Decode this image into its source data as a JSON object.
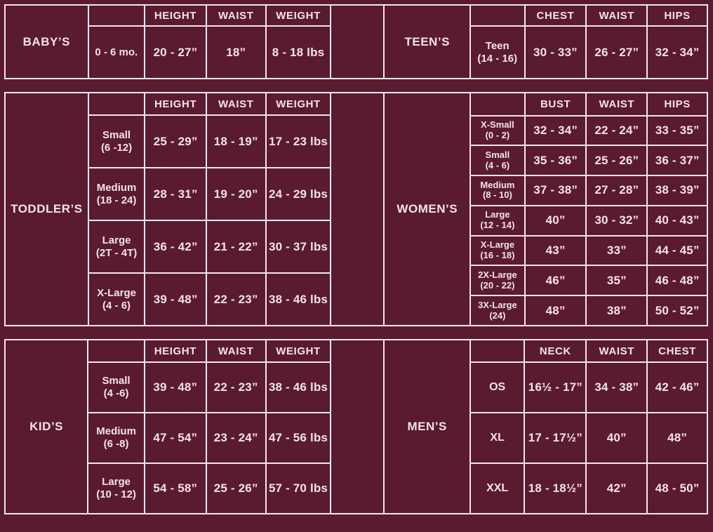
{
  "page": {
    "background_color": "#5a1b2e",
    "line_color": "#f3e8ea",
    "text_color": "#f3e4e8"
  },
  "bands": [
    {
      "left": {
        "label": "BABY’S",
        "col_headers": [
          "HEIGHT",
          "WAIST",
          "WEIGHT"
        ],
        "rows": [
          {
            "size": "0 - 6 mo.",
            "range": "",
            "values": [
              "20 - 27”",
              "18”",
              "8 - 18 lbs"
            ]
          }
        ]
      },
      "right": {
        "label": "TEEN’S",
        "col_headers": [
          "CHEST",
          "WAIST",
          "HIPS"
        ],
        "rows": [
          {
            "size": "Teen",
            "range": "(14 - 16)",
            "values": [
              "30 - 33”",
              "26 - 27”",
              "32 - 34”"
            ]
          }
        ]
      }
    },
    {
      "left": {
        "label": "TODDLER’S",
        "col_headers": [
          "HEIGHT",
          "WAIST",
          "WEIGHT"
        ],
        "rows": [
          {
            "size": "Small",
            "range": "(6 -12)",
            "values": [
              "25 - 29”",
              "18 - 19”",
              "17 - 23 lbs"
            ]
          },
          {
            "size": "Medium",
            "range": "(18 - 24)",
            "values": [
              "28 - 31”",
              "19 - 20”",
              "24 - 29 lbs"
            ]
          },
          {
            "size": "Large",
            "range": "(2T - 4T)",
            "values": [
              "36 - 42”",
              "21 - 22”",
              "30 - 37 lbs"
            ]
          },
          {
            "size": "X-Large",
            "range": "(4 - 6)",
            "values": [
              "39 - 48”",
              "22 - 23”",
              "38 - 46 lbs"
            ]
          }
        ]
      },
      "right": {
        "label": "WOMEN’S",
        "col_headers": [
          "BUST",
          "WAIST",
          "HIPS"
        ],
        "rows": [
          {
            "size": "X-Small",
            "range": "(0 - 2)",
            "values": [
              "32 - 34”",
              "22 - 24”",
              "33 - 35”"
            ]
          },
          {
            "size": "Small",
            "range": "(4 - 6)",
            "values": [
              "35 - 36”",
              "25 - 26”",
              "36 - 37”"
            ]
          },
          {
            "size": "Medium",
            "range": "(8 - 10)",
            "values": [
              "37 - 38”",
              "27 - 28”",
              "38 - 39”"
            ]
          },
          {
            "size": "Large",
            "range": "(12 - 14)",
            "values": [
              "40”",
              "30 - 32”",
              "40 - 43”"
            ]
          },
          {
            "size": "X-Large",
            "range": "(16 - 18)",
            "values": [
              "43”",
              "33”",
              "44 - 45”"
            ]
          },
          {
            "size": "2X-Large",
            "range": "(20 - 22)",
            "values": [
              "46”",
              "35”",
              "46 - 48”"
            ]
          },
          {
            "size": "3X-Large",
            "range": "(24)",
            "values": [
              "48”",
              "38”",
              "50 - 52”"
            ]
          }
        ]
      }
    },
    {
      "left": {
        "label": "KID’S",
        "col_headers": [
          "HEIGHT",
          "WAIST",
          "WEIGHT"
        ],
        "rows": [
          {
            "size": "Small",
            "range": "(4 -6)",
            "values": [
              "39 - 48”",
              "22 - 23”",
              "38 - 46 lbs"
            ]
          },
          {
            "size": "Medium",
            "range": "(6 -8)",
            "values": [
              "47 - 54”",
              "23 - 24”",
              "47 - 56 lbs"
            ]
          },
          {
            "size": "Large",
            "range": "(10 - 12)",
            "values": [
              "54 - 58”",
              "25 - 26”",
              "57 - 70 lbs"
            ]
          }
        ]
      },
      "right": {
        "label": "MEN’S",
        "col_headers": [
          "NECK",
          "WAIST",
          "CHEST"
        ],
        "rows": [
          {
            "size": "OS",
            "range": "",
            "values": [
              "16½ - 17”",
              "34 - 38”",
              "42 - 46”"
            ]
          },
          {
            "size": "XL",
            "range": "",
            "values": [
              "17 - 17½”",
              "40”",
              "48”"
            ]
          },
          {
            "size": "XXL",
            "range": "",
            "values": [
              "18 - 18½”",
              "42”",
              "48 - 50”"
            ]
          }
        ]
      }
    }
  ]
}
